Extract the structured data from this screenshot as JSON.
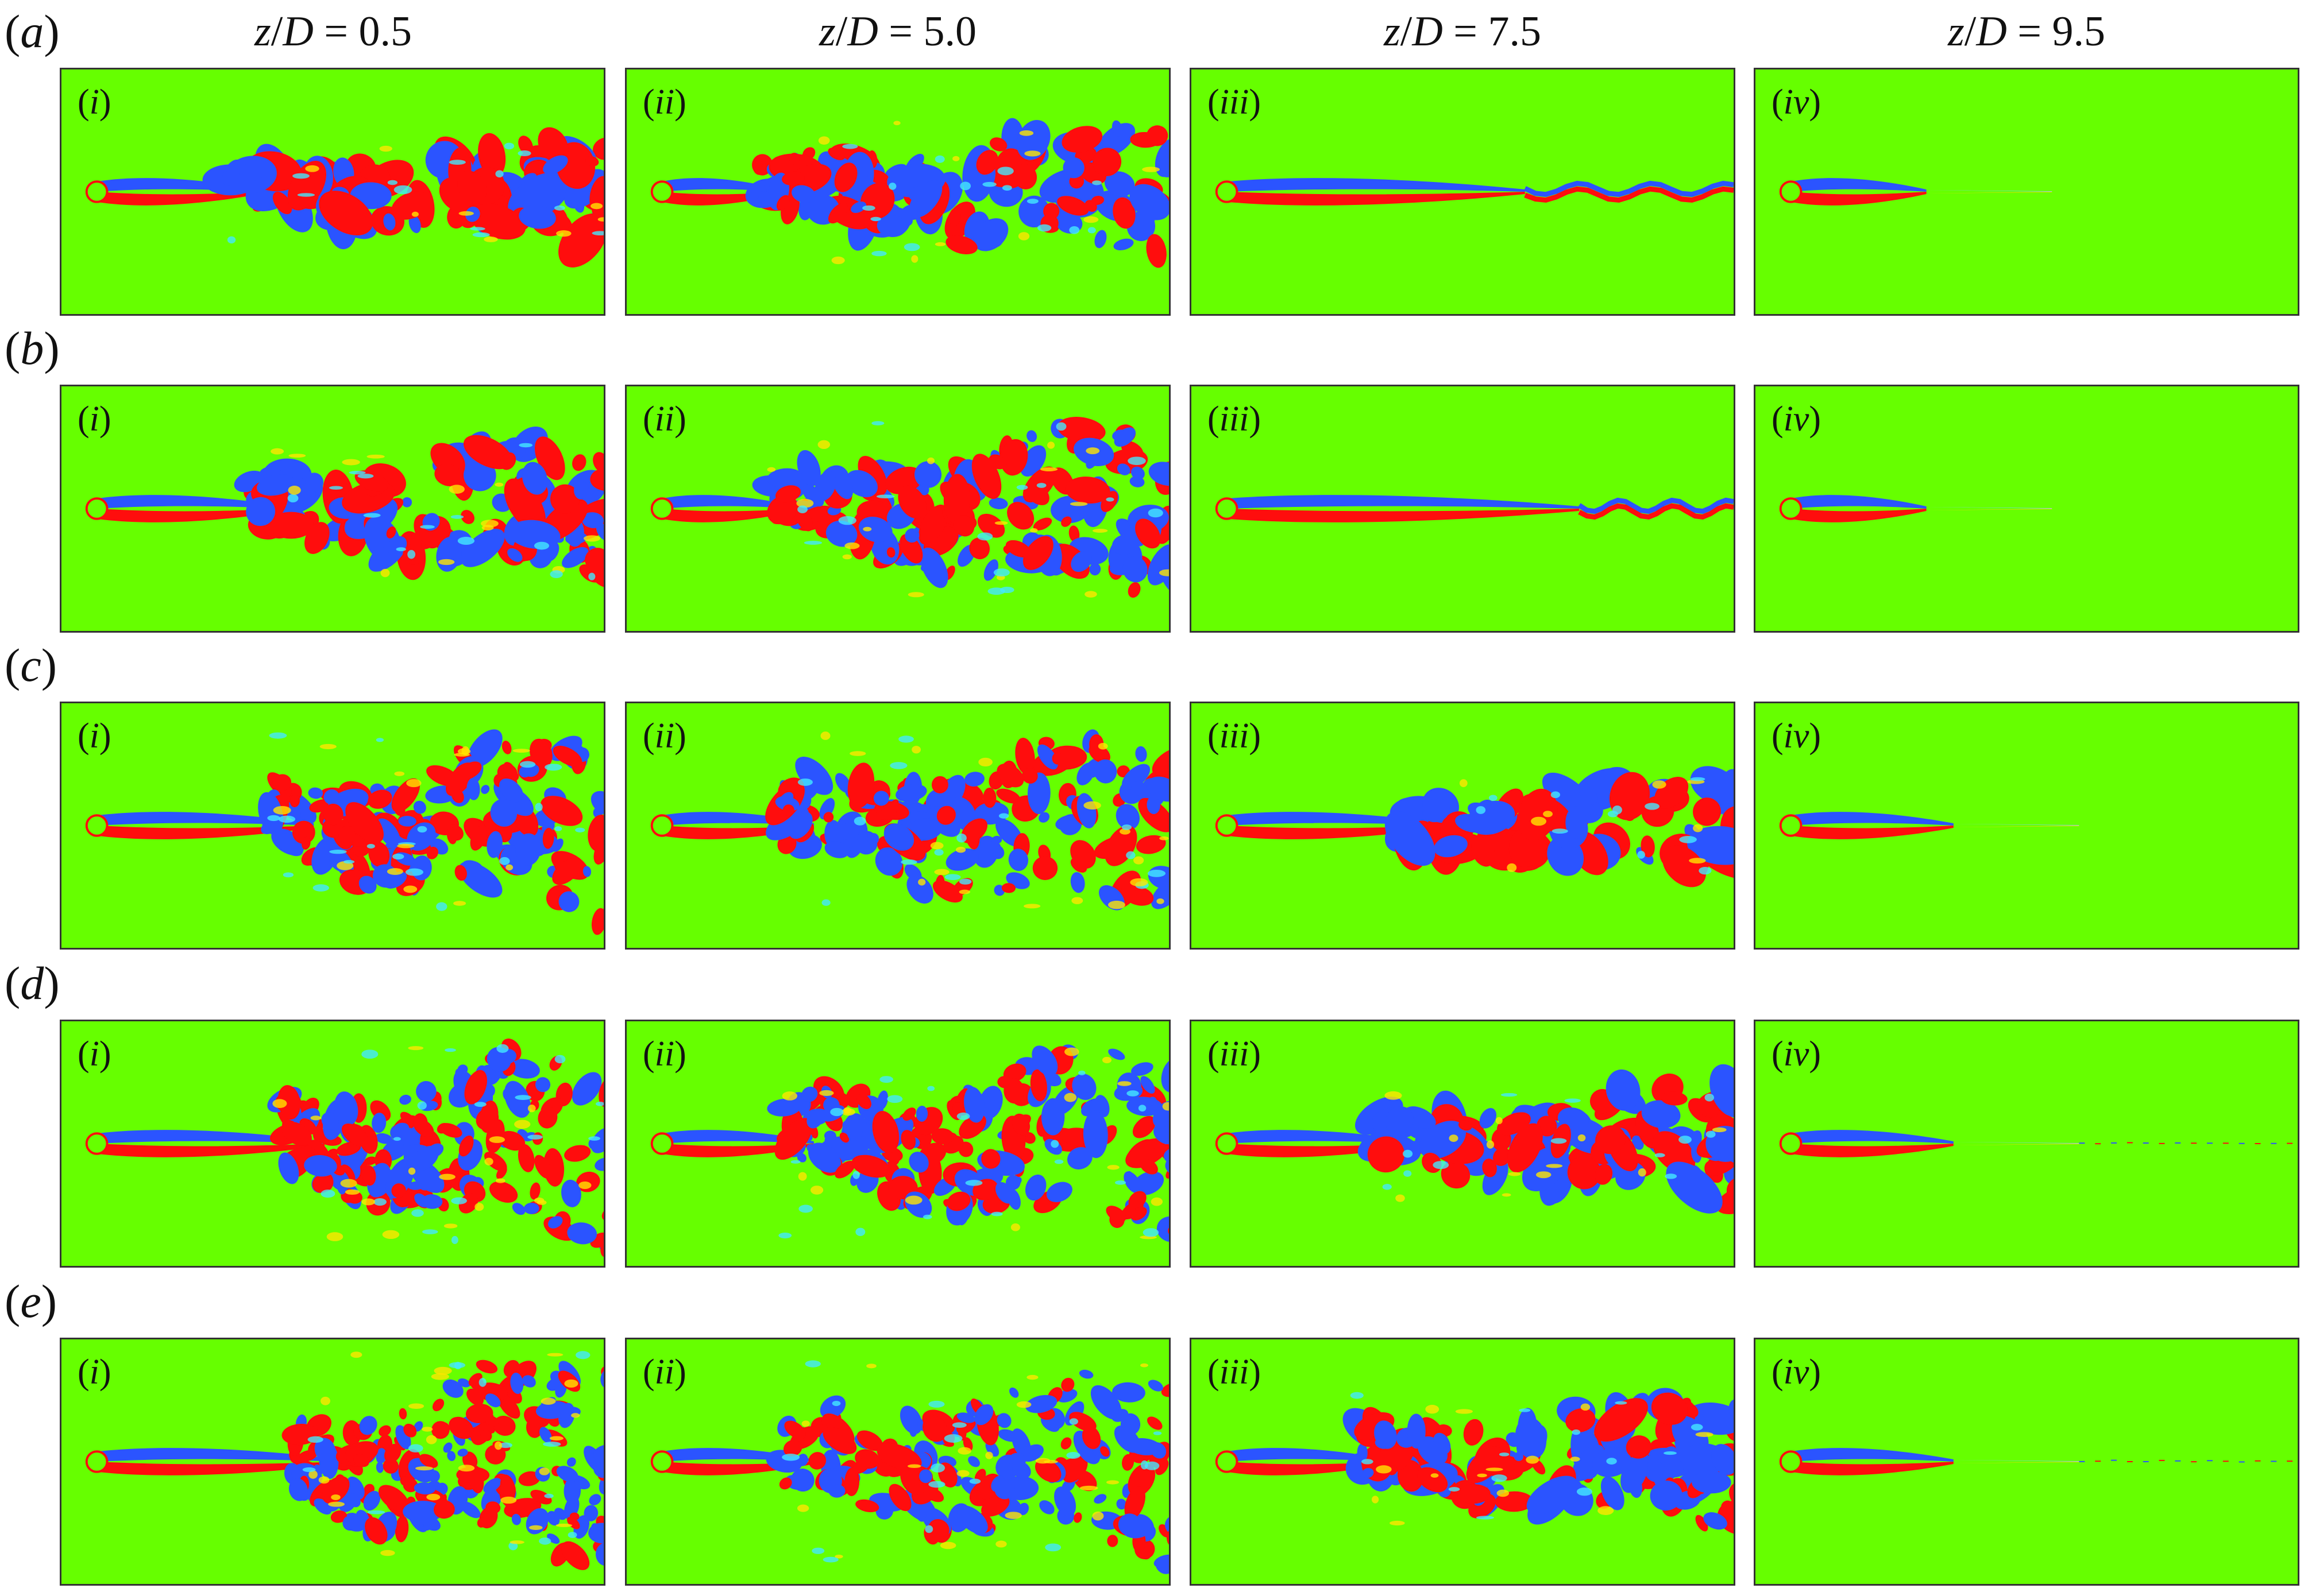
{
  "figure": {
    "column_headers": [
      {
        "var": "z",
        "op": "/",
        "var2": "D",
        "eq": " = 0.5"
      },
      {
        "var": "z",
        "op": "/",
        "var2": "D",
        "eq": " = 5.0"
      },
      {
        "var": "z",
        "op": "/",
        "var2": "D",
        "eq": " = 7.5"
      },
      {
        "var": "z",
        "op": "/",
        "var2": "D",
        "eq": " = 9.5"
      }
    ],
    "rows": [
      {
        "open": "(",
        "letter": "a",
        "close": ")"
      },
      {
        "open": "(",
        "letter": "b",
        "close": ")"
      },
      {
        "open": "(",
        "letter": "c",
        "close": ")"
      },
      {
        "open": "(",
        "letter": "d",
        "close": ")"
      },
      {
        "open": "(",
        "letter": "e",
        "close": ")"
      }
    ],
    "panel_labels": [
      {
        "open": "(",
        "num": "i",
        "close": ")"
      },
      {
        "open": "(",
        "num": "ii",
        "close": ")"
      },
      {
        "open": "(",
        "num": "iii",
        "close": ")"
      },
      {
        "open": "(",
        "num": "iv",
        "close": ")"
      }
    ],
    "colors": {
      "background": "#66ff00",
      "positive": "#ff0d0d",
      "negative": "#2b54ff",
      "cylinder": "#66ff00",
      "frame": "#333333"
    }
  }
}
